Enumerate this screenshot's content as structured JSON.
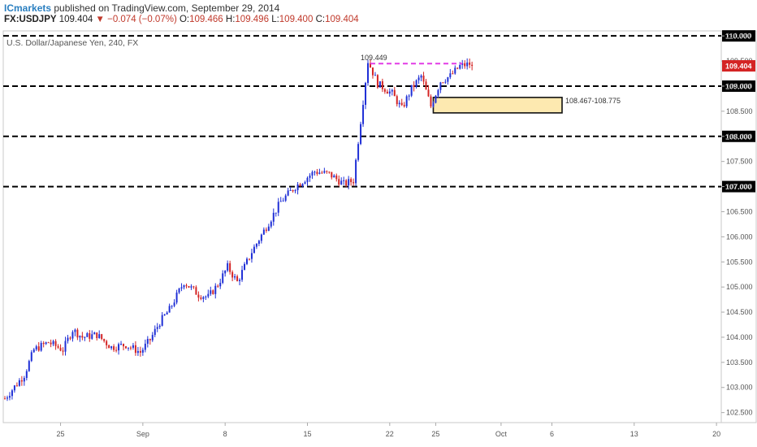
{
  "header": {
    "publisher": "ICmarkets",
    "published_text": "published on TradingView.com, September 29, 2014",
    "symbol": "FX:USDJPY",
    "last": "109.404",
    "change": "▼ −0.074 (−0.07%)",
    "open_label": "O:",
    "open": "109.466",
    "high_label": "H:",
    "high": "109.496",
    "low_label": "L:",
    "low": "109.400",
    "close_label": "C:",
    "close": "109.404"
  },
  "colors": {
    "up": "#1f2fd6",
    "down": "#d42424",
    "level_line": "#000000",
    "resistance_dash": "#e23ce6",
    "zone_fill": "#fde9b0",
    "price_label": "#d42424"
  },
  "chart_data": {
    "type": "candlestick",
    "subtitle": "U.S. Dollar/Japanese Yen, 240, FX",
    "y_ticks": [
      "110.000",
      "109.500",
      "109.000",
      "108.500",
      "108.000",
      "107.500",
      "107.000",
      "106.500",
      "106.000",
      "105.500",
      "105.000",
      "104.500",
      "104.000",
      "103.500",
      "103.000",
      "102.500"
    ],
    "ylim": [
      102.3,
      110.1
    ],
    "x_ticks": [
      "25",
      "Sep",
      "8",
      "15",
      "22",
      "25",
      "Oct",
      "6",
      "13",
      "20"
    ],
    "horizontal_levels": [
      {
        "price": 110.0,
        "label": "110.000"
      },
      {
        "price": 109.0,
        "label": "109.000"
      },
      {
        "price": 108.0,
        "label": "108.000"
      },
      {
        "price": 107.0,
        "label": "107.000"
      }
    ],
    "resistance": {
      "price": 109.449,
      "label": "109.449"
    },
    "zone": {
      "low": 108.467,
      "high": 108.775,
      "label": "108.467-108.775"
    },
    "last_price_label": "109.404",
    "path_anchors": [
      [
        0,
        102.78
      ],
      [
        8,
        103.25
      ],
      [
        12,
        103.75
      ],
      [
        18,
        103.9
      ],
      [
        24,
        103.75
      ],
      [
        28,
        104.15
      ],
      [
        32,
        104.0
      ],
      [
        38,
        104.05
      ],
      [
        44,
        103.8
      ],
      [
        50,
        103.85
      ],
      [
        56,
        103.7
      ],
      [
        60,
        103.95
      ],
      [
        64,
        104.3
      ],
      [
        68,
        104.55
      ],
      [
        74,
        105.1
      ],
      [
        80,
        104.85
      ],
      [
        84,
        104.8
      ],
      [
        88,
        105.05
      ],
      [
        92,
        105.4
      ],
      [
        96,
        105.1
      ],
      [
        102,
        105.7
      ],
      [
        108,
        106.2
      ],
      [
        114,
        106.7
      ],
      [
        120,
        107.0
      ],
      [
        128,
        107.3
      ],
      [
        134,
        107.25
      ],
      [
        140,
        107.05
      ],
      [
        144,
        107.12
      ],
      [
        150,
        109.5
      ],
      [
        154,
        109.05
      ],
      [
        160,
        108.85
      ],
      [
        164,
        108.55
      ],
      [
        168,
        108.95
      ],
      [
        172,
        109.2
      ],
      [
        176,
        108.6
      ],
      [
        180,
        109.1
      ],
      [
        184,
        109.2
      ],
      [
        188,
        109.4
      ],
      [
        193,
        109.45
      ]
    ]
  }
}
